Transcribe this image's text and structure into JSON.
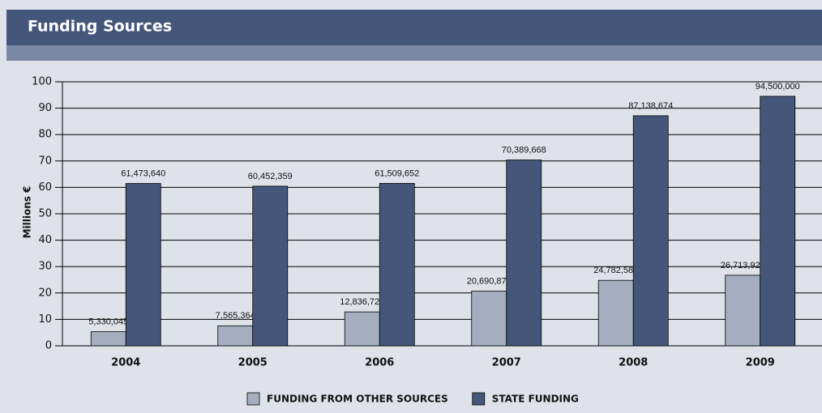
{
  "chart_data": {
    "type": "bar",
    "title": "Funding Sources",
    "y_label": "Millions €",
    "categories": [
      "2004",
      "2005",
      "2006",
      "2007",
      "2008",
      "2009"
    ],
    "series": [
      {
        "name": "FUNDING FROM OTHER SOURCES",
        "color": "#a4aebf",
        "values": [
          5.330045,
          7.565364,
          12.836724,
          20.69087,
          24.78258,
          26.713925
        ],
        "value_labels": [
          "5,330,045",
          "7,565,364",
          "12,836,724",
          "20,690,870",
          "24,782,580",
          "26,713,925"
        ]
      },
      {
        "name": "STATE FUNDING",
        "color": "#44577a",
        "values": [
          61.47364,
          60.452359,
          61.509652,
          70.389668,
          87.138674,
          94.5
        ],
        "value_labels": [
          "61,473,640",
          "60,452,359",
          "61,509,652",
          "70,389,668",
          "87,138,674",
          "94,500,000"
        ]
      }
    ],
    "ylim": [
      0,
      100
    ],
    "yticks": [
      0,
      10,
      20,
      30,
      40,
      50,
      60,
      70,
      80,
      90,
      100
    ],
    "grid": true
  }
}
